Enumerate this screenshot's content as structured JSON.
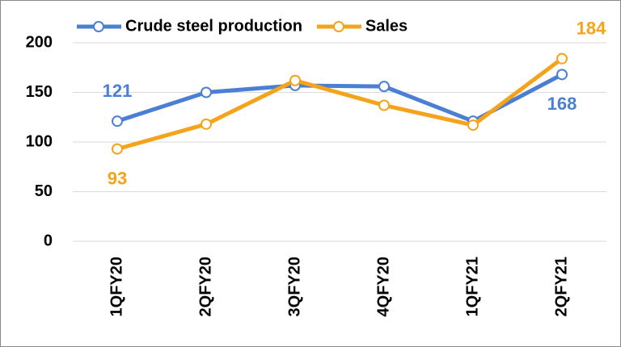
{
  "chart_data": {
    "type": "line",
    "categories": [
      "1QFY20",
      "2QFY20",
      "3QFY20",
      "4QFY20",
      "1QFY21",
      "2QFY21"
    ],
    "series": [
      {
        "name": "Crude steel production",
        "color": "#4a7fd4",
        "values": [
          121,
          150,
          157,
          156,
          121,
          168
        ],
        "labeled_points": [
          0,
          5
        ]
      },
      {
        "name": "Sales",
        "color": "#f5a31a",
        "values": [
          93,
          118,
          162,
          137,
          117,
          184
        ],
        "labeled_points": [
          0,
          5
        ]
      }
    ],
    "ylim": [
      0,
      200
    ],
    "yticks": [
      0,
      50,
      100,
      150,
      200
    ],
    "grid": true,
    "legend": "top"
  }
}
